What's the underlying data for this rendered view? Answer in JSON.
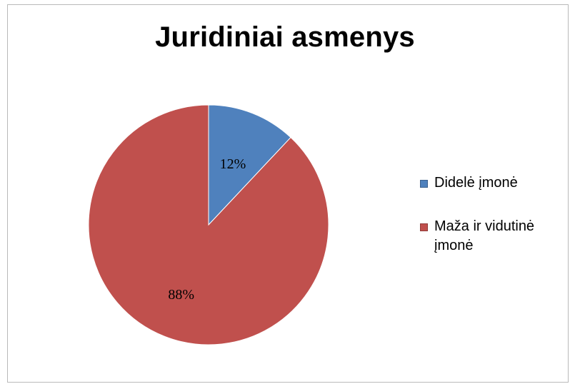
{
  "chart_data": {
    "type": "pie",
    "title": "Juridiniai asmenys",
    "categories": [
      "Didelė įmonė",
      "Maža ir vidutinė įmonė"
    ],
    "values": [
      12,
      88
    ],
    "value_labels": [
      "12%",
      "88%"
    ],
    "colors": [
      "#4f81bd",
      "#c0504d"
    ],
    "legend_position": "right",
    "start_angle_deg": 0,
    "direction": "clockwise"
  }
}
